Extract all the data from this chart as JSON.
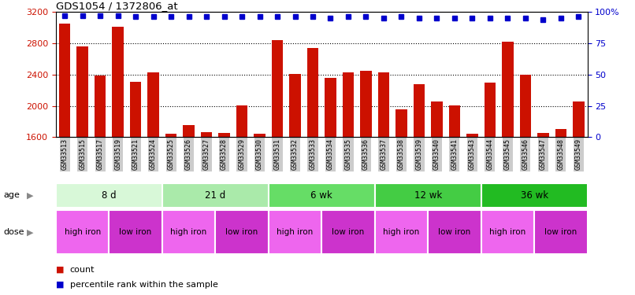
{
  "title": "GDS1054 / 1372806_at",
  "samples": [
    "GSM33513",
    "GSM33515",
    "GSM33517",
    "GSM33519",
    "GSM33521",
    "GSM33524",
    "GSM33525",
    "GSM33526",
    "GSM33527",
    "GSM33528",
    "GSM33529",
    "GSM33530",
    "GSM33531",
    "GSM33532",
    "GSM33533",
    "GSM33534",
    "GSM33535",
    "GSM33536",
    "GSM33537",
    "GSM33538",
    "GSM33539",
    "GSM33540",
    "GSM33541",
    "GSM33543",
    "GSM33544",
    "GSM33545",
    "GSM33546",
    "GSM33547",
    "GSM33548",
    "GSM33549"
  ],
  "counts": [
    3050,
    2760,
    2390,
    3010,
    2310,
    2430,
    1640,
    1750,
    1660,
    1650,
    2010,
    1640,
    2840,
    2410,
    2740,
    2360,
    2430,
    2450,
    2430,
    1960,
    2280,
    2060,
    2010,
    1640,
    2300,
    2820,
    2400,
    1650,
    1700,
    2060
  ],
  "percentile_ranks": [
    97,
    97,
    97,
    97,
    96,
    96,
    96,
    96,
    96,
    96,
    96,
    96,
    96,
    96,
    96,
    95,
    96,
    96,
    95,
    96,
    95,
    95,
    95,
    95,
    95,
    95,
    95,
    94,
    95,
    96
  ],
  "age_groups": [
    {
      "label": "8 d",
      "start": 0,
      "end": 6,
      "color": "#d8f8d8"
    },
    {
      "label": "21 d",
      "start": 6,
      "end": 12,
      "color": "#aaeaaa"
    },
    {
      "label": "6 wk",
      "start": 12,
      "end": 18,
      "color": "#66dd66"
    },
    {
      "label": "12 wk",
      "start": 18,
      "end": 24,
      "color": "#44cc44"
    },
    {
      "label": "36 wk",
      "start": 24,
      "end": 30,
      "color": "#22bb22"
    }
  ],
  "dose_groups": [
    {
      "label": "high iron",
      "start": 0,
      "end": 3,
      "color": "#ee66ee"
    },
    {
      "label": "low iron",
      "start": 3,
      "end": 6,
      "color": "#cc33cc"
    },
    {
      "label": "high iron",
      "start": 6,
      "end": 9,
      "color": "#ee66ee"
    },
    {
      "label": "low iron",
      "start": 9,
      "end": 12,
      "color": "#cc33cc"
    },
    {
      "label": "high iron",
      "start": 12,
      "end": 15,
      "color": "#ee66ee"
    },
    {
      "label": "low iron",
      "start": 15,
      "end": 18,
      "color": "#cc33cc"
    },
    {
      "label": "high iron",
      "start": 18,
      "end": 21,
      "color": "#ee66ee"
    },
    {
      "label": "low iron",
      "start": 21,
      "end": 24,
      "color": "#cc33cc"
    },
    {
      "label": "high iron",
      "start": 24,
      "end": 27,
      "color": "#ee66ee"
    },
    {
      "label": "low iron",
      "start": 27,
      "end": 30,
      "color": "#cc33cc"
    }
  ],
  "ylim_left": [
    1600,
    3200
  ],
  "ylim_right": [
    0,
    100
  ],
  "yticks_left": [
    1600,
    2000,
    2400,
    2800,
    3200
  ],
  "yticks_right": [
    0,
    25,
    50,
    75,
    100
  ],
  "bar_color": "#cc1100",
  "dot_color": "#0000cc",
  "tick_bg_color": "#cccccc",
  "legend_count_label": "count",
  "legend_pct_label": "percentile rank within the sample"
}
